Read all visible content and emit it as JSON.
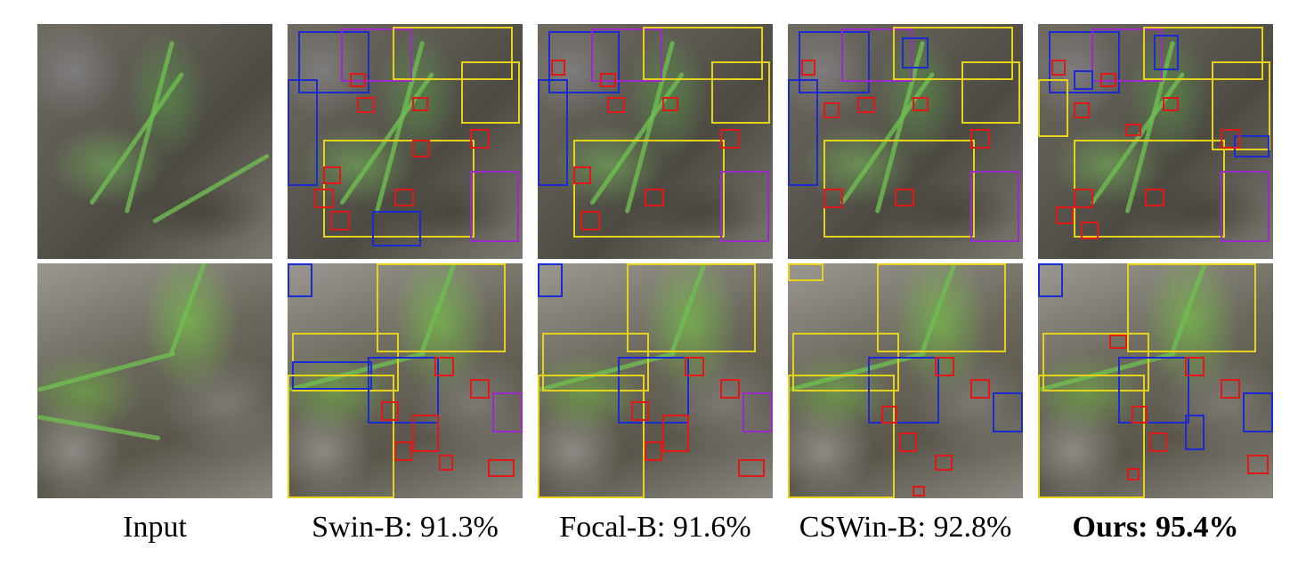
{
  "columns": [
    {
      "id": "input",
      "label": "Input",
      "bold": false
    },
    {
      "id": "swin",
      "label": "Swin-B: 91.3%",
      "bold": false
    },
    {
      "id": "focal",
      "label": "Focal-B: 91.6%",
      "bold": false
    },
    {
      "id": "cswin",
      "label": "CSWin-B: 92.8%",
      "bold": false
    },
    {
      "id": "ours",
      "label": "Ours: 95.4%",
      "bold": true
    }
  ],
  "box_colors": {
    "red": "#e01818",
    "yellow": "#e6d21a",
    "blue": "#1a2bd0",
    "purple": "#9a2bc8"
  }
}
